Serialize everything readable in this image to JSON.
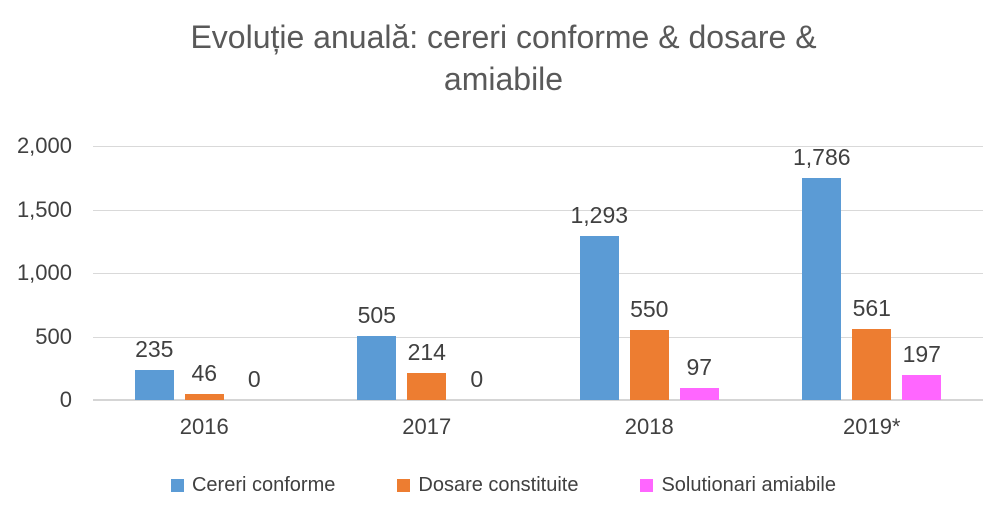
{
  "title": {
    "full": "Evoluție anuală: cereri conforme & dosare & amiabile",
    "lines": [
      "Evoluție anuală: cereri conforme & dosare &",
      "amiabile"
    ]
  },
  "colors": {
    "series_blue": "#5B9BD5",
    "series_orange": "#ED7D31",
    "series_magenta": "#FF66FF",
    "gridline": "#D9D9D9",
    "axis_text": "#404040",
    "title_text": "#595959"
  },
  "chart_data": {
    "type": "bar",
    "title": "Evoluție anuală: cereri conforme & dosare & amiabile",
    "categories": [
      "2016",
      "2017",
      "2018",
      "2019*"
    ],
    "series": [
      {
        "name": "Cereri conforme",
        "color": "#5B9BD5",
        "values": [
          235,
          505,
          1293,
          1786
        ],
        "data_labels": [
          "235",
          "505",
          "1,293",
          "1,786"
        ]
      },
      {
        "name": "Dosare constituite",
        "color": "#ED7D31",
        "values": [
          46,
          214,
          550,
          561
        ],
        "data_labels": [
          "46",
          "214",
          "550",
          "561"
        ]
      },
      {
        "name": "Solutionari amiabile",
        "color": "#FF66FF",
        "values": [
          0,
          0,
          97,
          197
        ],
        "data_labels": [
          "0",
          "0",
          "97",
          "197"
        ]
      }
    ],
    "ylim": [
      0,
      2000
    ],
    "yticks": [
      {
        "value": 0,
        "label": "0"
      },
      {
        "value": 500,
        "label": "500"
      },
      {
        "value": 1000,
        "label": "1,000"
      },
      {
        "value": 1500,
        "label": "1,500"
      },
      {
        "value": 2000,
        "label": "2,000"
      }
    ],
    "grid": true,
    "legend_position": "bottom"
  }
}
